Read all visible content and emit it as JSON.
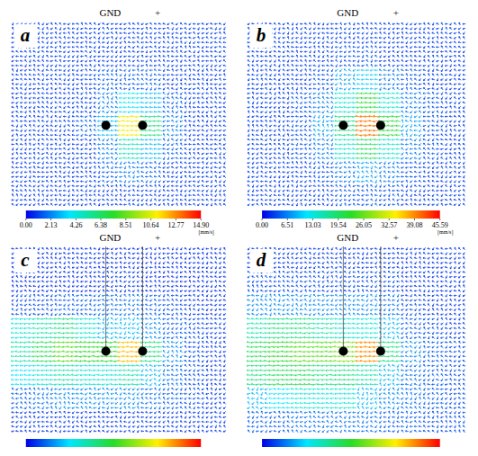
{
  "chart_data": [
    {
      "type": "vector_field",
      "title": "a",
      "annotations": [
        "GND",
        "+"
      ],
      "colorbar_range": [
        0,
        14.9
      ],
      "colorbar_ticks": [
        {
          "value": 0,
          "label": "0.00"
        },
        {
          "value": 2.13,
          "label": "2.13"
        },
        {
          "value": 4.26,
          "label": "4.26"
        },
        {
          "value": 6.38,
          "label": "6.38"
        },
        {
          "value": 8.51,
          "label": "8.51"
        },
        {
          "value": 10.64,
          "label": "10.64"
        },
        {
          "value": 12.77,
          "label": "12.77"
        },
        {
          "value": 14.9,
          "label": "14.90"
        }
      ],
      "colorbar_unit": "[mm/s]",
      "cells": [
        [
          1,
          1,
          1,
          1,
          1,
          1,
          1,
          1,
          1,
          1
        ],
        [
          1,
          1,
          1,
          1,
          1,
          1,
          1,
          1,
          1,
          1
        ],
        [
          1,
          1,
          1,
          1,
          1.5,
          1.5,
          1.5,
          1,
          1,
          1
        ],
        [
          1,
          1,
          1,
          1,
          2,
          4,
          3,
          1.5,
          1,
          1
        ],
        [
          1,
          1,
          1,
          1.5,
          3,
          11,
          6,
          2,
          1,
          1
        ],
        [
          1,
          1,
          1,
          1,
          2,
          5,
          3,
          1.5,
          1,
          1
        ],
        [
          1,
          1,
          1,
          1,
          1.5,
          2,
          1.5,
          1,
          1,
          1
        ],
        [
          1,
          1,
          1,
          1,
          1,
          1,
          1,
          1,
          1,
          1
        ]
      ]
    },
    {
      "type": "vector_field",
      "title": "b",
      "annotations": [
        "GND",
        "+"
      ],
      "colorbar_range": [
        0,
        45.59
      ],
      "colorbar_ticks": [
        {
          "value": 0,
          "label": "0.00"
        },
        {
          "value": 6.51,
          "label": "6.51"
        },
        {
          "value": 13.03,
          "label": "13.03"
        },
        {
          "value": 19.54,
          "label": "19.54"
        },
        {
          "value": 26.05,
          "label": "26.05"
        },
        {
          "value": 32.57,
          "label": "32.57"
        },
        {
          "value": 39.08,
          "label": "39.08"
        },
        {
          "value": 45.59,
          "label": "45.59"
        }
      ],
      "colorbar_unit": "[mm/s]",
      "cells": [
        [
          3,
          3,
          3,
          3,
          3,
          3,
          3,
          3,
          3,
          3
        ],
        [
          3,
          3,
          3,
          3,
          4,
          4,
          3,
          3,
          3,
          3
        ],
        [
          3,
          3,
          3,
          4,
          8,
          10,
          6,
          4,
          3,
          3
        ],
        [
          3,
          3,
          4,
          6,
          14,
          22,
          14,
          6,
          4,
          3
        ],
        [
          3,
          3,
          4,
          8,
          18,
          40,
          22,
          8,
          4,
          3
        ],
        [
          3,
          3,
          4,
          6,
          14,
          20,
          14,
          6,
          4,
          3
        ],
        [
          3,
          3,
          3,
          4,
          6,
          8,
          6,
          4,
          3,
          3
        ],
        [
          3,
          3,
          3,
          3,
          4,
          4,
          4,
          3,
          3,
          3
        ]
      ]
    },
    {
      "type": "vector_field",
      "title": "c",
      "annotations": [
        "GND",
        "+"
      ],
      "colorbar_range": [
        0,
        1
      ],
      "colorbar_ticks": [],
      "cells": [
        [
          0.05,
          0.05,
          0.05,
          0.05,
          0.05,
          0.05,
          0.05,
          0.05,
          0.05,
          0.05
        ],
        [
          0.05,
          0.05,
          0.05,
          0.05,
          0.06,
          0.06,
          0.05,
          0.05,
          0.05,
          0.05
        ],
        [
          0.08,
          0.08,
          0.1,
          0.1,
          0.12,
          0.12,
          0.1,
          0.08,
          0.06,
          0.05
        ],
        [
          0.3,
          0.35,
          0.4,
          0.3,
          0.2,
          0.2,
          0.15,
          0.1,
          0.08,
          0.06
        ],
        [
          0.35,
          0.45,
          0.55,
          0.5,
          0.5,
          0.8,
          0.4,
          0.15,
          0.08,
          0.06
        ],
        [
          0.25,
          0.3,
          0.35,
          0.3,
          0.3,
          0.35,
          0.2,
          0.12,
          0.08,
          0.06
        ],
        [
          0.1,
          0.12,
          0.15,
          0.15,
          0.15,
          0.15,
          0.12,
          0.1,
          0.08,
          0.06
        ],
        [
          0.06,
          0.06,
          0.06,
          0.06,
          0.06,
          0.06,
          0.06,
          0.06,
          0.06,
          0.06
        ]
      ]
    },
    {
      "type": "vector_field",
      "title": "d",
      "annotations": [
        "GND",
        "+"
      ],
      "colorbar_range": [
        0,
        1
      ],
      "colorbar_ticks": [],
      "cells": [
        [
          0.06,
          0.06,
          0.06,
          0.06,
          0.06,
          0.06,
          0.06,
          0.06,
          0.06,
          0.06
        ],
        [
          0.08,
          0.08,
          0.08,
          0.08,
          0.08,
          0.08,
          0.08,
          0.06,
          0.06,
          0.06
        ],
        [
          0.15,
          0.15,
          0.15,
          0.15,
          0.15,
          0.15,
          0.12,
          0.08,
          0.06,
          0.06
        ],
        [
          0.35,
          0.4,
          0.4,
          0.35,
          0.3,
          0.3,
          0.2,
          0.1,
          0.08,
          0.06
        ],
        [
          0.45,
          0.5,
          0.55,
          0.55,
          0.6,
          0.85,
          0.4,
          0.15,
          0.1,
          0.08
        ],
        [
          0.4,
          0.45,
          0.45,
          0.4,
          0.4,
          0.35,
          0.2,
          0.12,
          0.1,
          0.08
        ],
        [
          0.2,
          0.25,
          0.3,
          0.3,
          0.3,
          0.2,
          0.15,
          0.12,
          0.1,
          0.08
        ],
        [
          0.1,
          0.1,
          0.12,
          0.12,
          0.12,
          0.12,
          0.1,
          0.1,
          0.08,
          0.08
        ]
      ]
    }
  ]
}
